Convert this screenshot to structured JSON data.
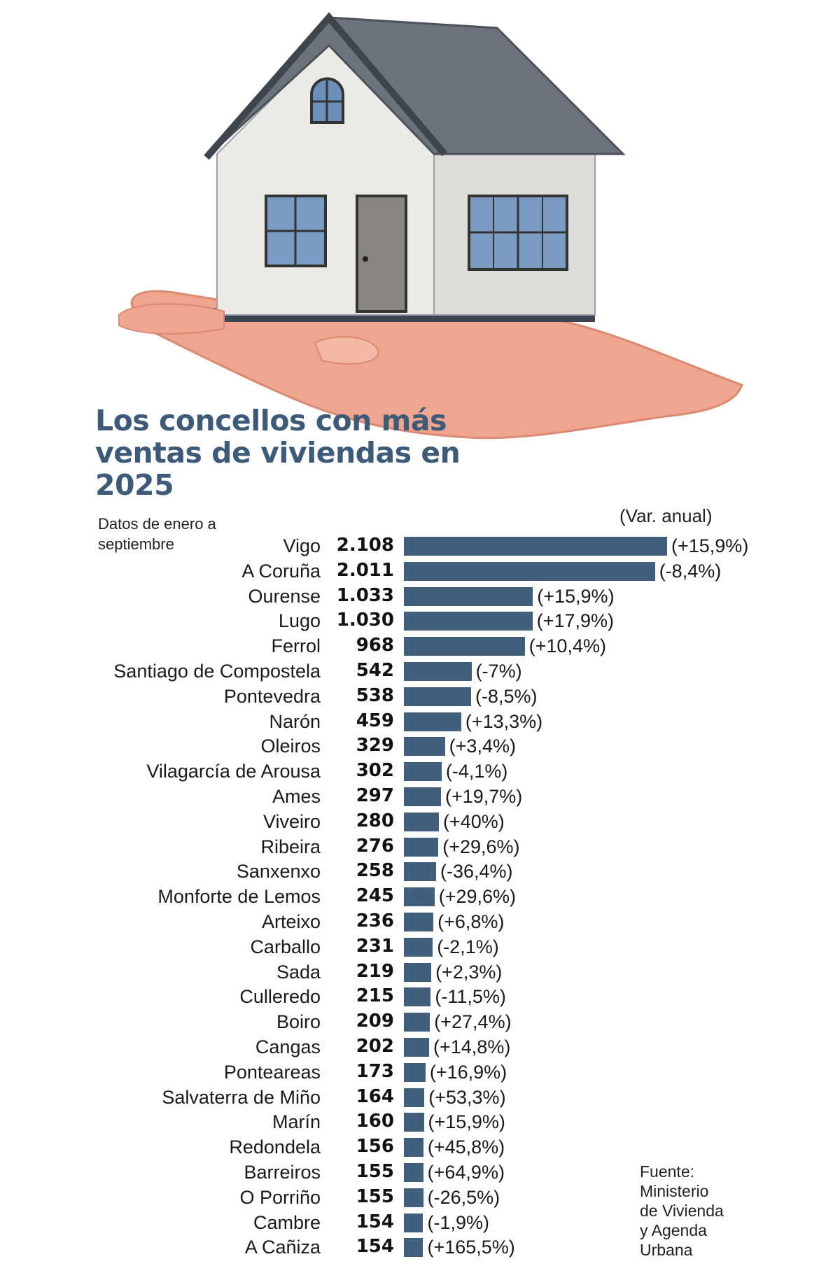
{
  "chart_data": {
    "type": "bar",
    "orientation": "horizontal",
    "title": "Los concellos con más ventas de viviendas en 2025",
    "subtitle": "Datos de enero a septiembre",
    "var_header": "(Var. anual)",
    "source": [
      "Fuente:",
      "Ministerio",
      "de Vivienda",
      "y Agenda",
      "Urbana"
    ],
    "bar_color": "#3f5f7c",
    "title_color": "#3d5a78",
    "categories": [
      "Vigo",
      "A Coruña",
      "Ourense",
      "Lugo",
      "Ferrol",
      "Santiago de Compostela",
      "Pontevedra",
      "Narón",
      "Oleiros",
      "Vilagarcía de Arousa",
      "Ames",
      "Viveiro",
      "Ribeira",
      "Sanxenxo",
      "Monforte de Lemos",
      "Arteixo",
      "Carballo",
      "Sada",
      "Culleredo",
      "Boiro",
      "Cangas",
      "Ponteareas",
      "Salvaterra de Miño",
      "Marín",
      "Redondela",
      "Barreiros",
      "O Porriño",
      "Cambre",
      "A Cañiza"
    ],
    "values": [
      2108,
      2011,
      1033,
      1030,
      968,
      542,
      538,
      459,
      329,
      302,
      297,
      280,
      276,
      258,
      245,
      236,
      231,
      219,
      215,
      209,
      202,
      173,
      164,
      160,
      156,
      155,
      155,
      154,
      154
    ],
    "value_labels": [
      "2.108",
      "2.011",
      "1.033",
      "1.030",
      "968",
      "542",
      "538",
      "459",
      "329",
      "302",
      "297",
      "280",
      "276",
      "258",
      "245",
      "236",
      "231",
      "219",
      "215",
      "209",
      "202",
      "173",
      "164",
      "160",
      "156",
      "155",
      "155",
      "154",
      "154"
    ],
    "annual_change_labels": [
      "(+15,9%)",
      "(-8,4%)",
      "(+15,9%)",
      "(+17,9%)",
      "(+10,4%)",
      "(-7%)",
      "(-8,5%)",
      "(+13,3%)",
      "(+3,4%)",
      "(-4,1%)",
      "(+19,7%)",
      "(+40%)",
      "(+29,6%)",
      "(-36,4%)",
      "(+29,6%)",
      "(+6,8%)",
      "(-2,1%)",
      "(+2,3%)",
      "(-11,5%)",
      "(+27,4%)",
      "(+14,8%)",
      "(+16,9%)",
      "(+53,3%)",
      "(+15,9%)",
      "(+45,8%)",
      "(+64,9%)",
      "(-26,5%)",
      "(-1,9%)",
      "(+165,5%)"
    ],
    "illustration": "house-on-hand"
  }
}
